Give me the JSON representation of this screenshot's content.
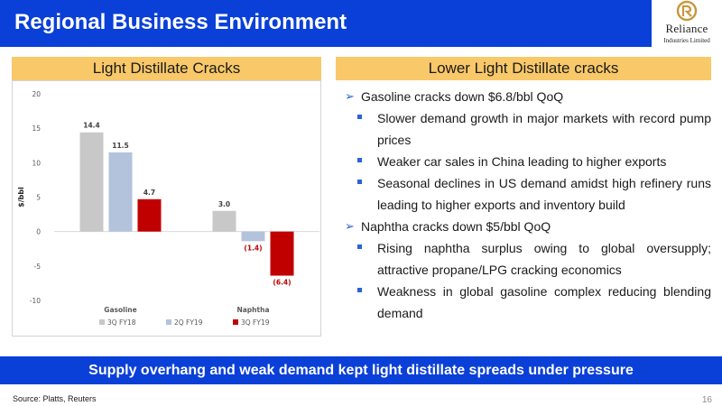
{
  "slide": {
    "title": "Regional Business Environment",
    "logo": {
      "name": "Reliance",
      "subtitle": "Industries Limited"
    },
    "left_panel_title": "Light Distillate Cracks",
    "right_panel_title": "Lower Light Distillate cracks",
    "bullets": [
      {
        "text": "Gasoline cracks down $6.8/bbl QoQ",
        "sub": [
          "Slower demand growth in major markets with record pump prices",
          "Weaker car sales in China leading to higher exports",
          "Seasonal declines in US demand amidst high refinery runs leading to higher exports and inventory build"
        ]
      },
      {
        "text": "Naphtha cracks down $5/bbl QoQ",
        "sub": [
          "Rising naphtha surplus owing to global oversupply; attractive propane/LPG cracking economics",
          "Weakness in global gasoline complex reducing blending demand"
        ]
      }
    ],
    "banner": "Supply overhang and weak demand kept light distillate spreads under pressure",
    "source": "Source: Platts, Reuters",
    "page_number": "16"
  },
  "colors": {
    "header_blue": "#0a3fd8",
    "panel_header": "#f9c969",
    "bullet_blue": "#2a63d6",
    "logo_gold": "#c8963c"
  },
  "chart_data": {
    "type": "bar",
    "categories": [
      "Gasoline",
      "Naphtha"
    ],
    "series": [
      {
        "name": "3Q FY18",
        "values": [
          14.4,
          3.0
        ],
        "labels": [
          "14.4",
          "3.0"
        ],
        "color": "#c8c8c8",
        "label_color": "#404040"
      },
      {
        "name": "2Q FY19",
        "values": [
          11.5,
          -1.4
        ],
        "labels": [
          "11.5",
          "(1.4)"
        ],
        "color": "#b4c3dc",
        "label_color": "#404040",
        "neg_label_color": "#c00000"
      },
      {
        "name": "3Q FY19",
        "values": [
          4.7,
          -6.4
        ],
        "labels": [
          "4.7",
          "(6.4)"
        ],
        "color": "#c00000",
        "label_color": "#404040",
        "neg_label_color": "#c00000"
      }
    ],
    "ylabel": "$/bbl",
    "ylim": [
      -10,
      20
    ],
    "yticks": [
      20,
      15,
      10,
      5,
      0,
      -5,
      -10
    ],
    "ytick_labels": [
      "20",
      "15",
      "10",
      "5",
      "0",
      "-5",
      "-10"
    ],
    "grid": false,
    "legend_position": "bottom"
  }
}
